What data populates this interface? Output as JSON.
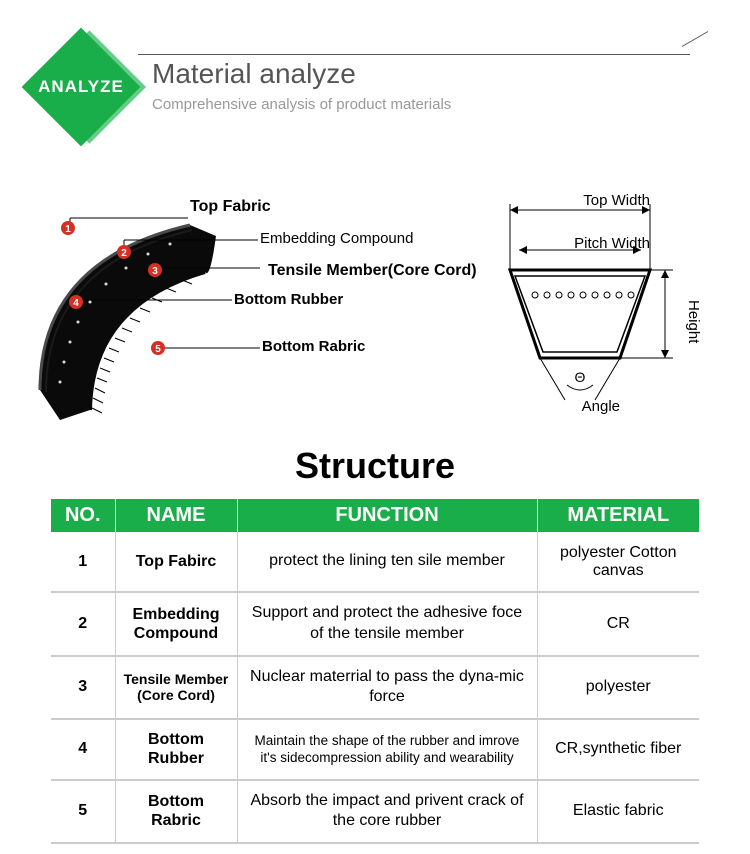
{
  "header": {
    "badge": "ANALYZE",
    "title": "Material analyze",
    "subtitle": "Comprehensive analysis of product materials",
    "badge_color": "#1aae4a"
  },
  "belt_layers": {
    "l1": "Top Fabric",
    "l2": "Embedding Compound",
    "l3": "Tensile Member(Core Cord)",
    "l4": "Bottom Rubber",
    "l5": "Bottom Rabric"
  },
  "profile": {
    "top_width": "Top Width",
    "pitch_width": "Pitch Width",
    "angle": "Angle",
    "angle_symbol": "Θ",
    "height": "Height"
  },
  "structure": {
    "heading": "Structure",
    "columns": {
      "no": "NO.",
      "name": "NAME",
      "function": "FUNCTION",
      "material": "MATERIAL"
    },
    "rows": [
      {
        "no": "1",
        "name": "Top Fabirc",
        "function": "protect the lining ten sile member",
        "material": "polyester Cotton canvas",
        "small_name": false,
        "small_func": false
      },
      {
        "no": "2",
        "name": "Embedding Compound",
        "function": "Support and protect the adhesive foce of the tensile member",
        "material": "CR",
        "small_name": false,
        "small_func": false
      },
      {
        "no": "3",
        "name": "Tensile Member (Core Cord)",
        "function": "Nuclear materrial to pass the dyna-mic force",
        "material": "polyester",
        "small_name": true,
        "small_func": false
      },
      {
        "no": "4",
        "name": "Bottom Rubber",
        "function": "Maintain the shape of the rubber and imrove it's sidecompression ability and wearability",
        "material": "CR,synthetic fiber",
        "small_name": false,
        "small_func": true
      },
      {
        "no": "5",
        "name": "Bottom Rabric",
        "function": "Absorb the impact and privent crack of the core rubber",
        "material": "Elastic fabric",
        "small_name": false,
        "small_func": false
      }
    ]
  },
  "colors": {
    "brand_green": "#1aae4a",
    "marker_red": "#d43023",
    "text_gray": "#555555",
    "subtext_gray": "#999999",
    "border_gray": "#cccccc"
  }
}
